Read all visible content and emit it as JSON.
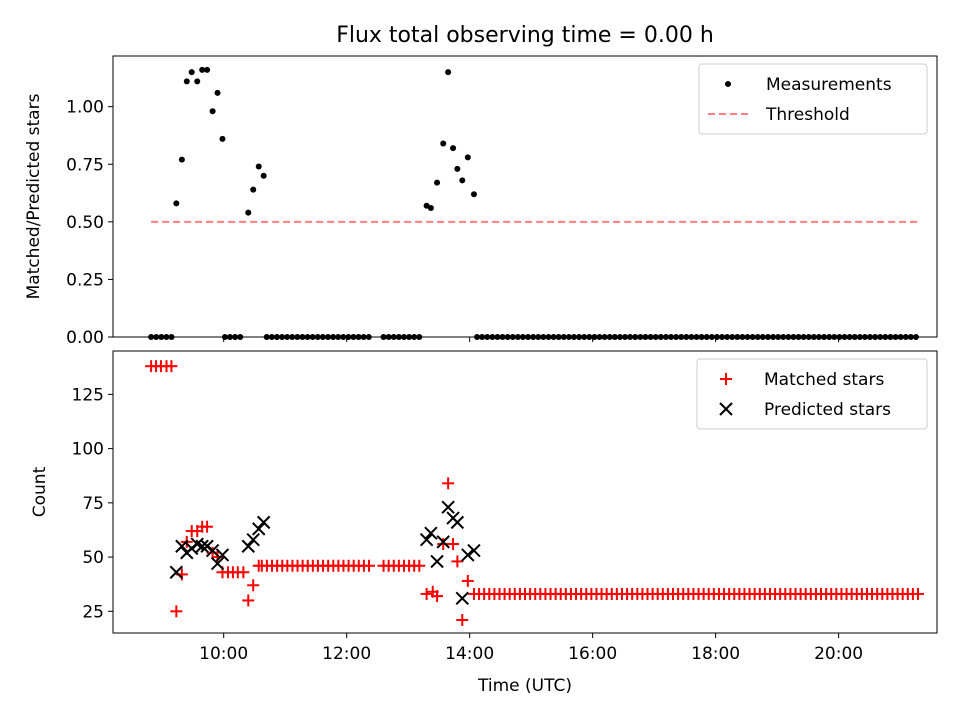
{
  "title": "Flux total observing time = 0.00 h",
  "chart_data": [
    {
      "type": "scatter",
      "panel": "top",
      "ylabel": "Matched/Predicted stars",
      "xlabel": "",
      "xlim_hours": [
        8.2,
        21.6
      ],
      "ylim": [
        0.0,
        1.22
      ],
      "yticks": [
        0.0,
        0.25,
        0.5,
        0.75,
        1.0
      ],
      "ytick_labels": [
        "0.00",
        "0.25",
        "0.50",
        "0.75",
        "1.00"
      ],
      "legend": {
        "position": "top-right",
        "entries": [
          "Measurements",
          "Threshold"
        ]
      },
      "series": [
        {
          "name": "Measurements",
          "marker": "dot",
          "color": "#000000",
          "points": [
            [
              9.23,
              0.58
            ],
            [
              9.32,
              0.77
            ],
            [
              9.4,
              1.11
            ],
            [
              9.48,
              1.15
            ],
            [
              9.57,
              1.11
            ],
            [
              9.65,
              1.16
            ],
            [
              9.73,
              1.16
            ],
            [
              9.82,
              0.98
            ],
            [
              9.9,
              1.06
            ],
            [
              9.98,
              0.86
            ],
            [
              10.4,
              0.54
            ],
            [
              10.48,
              0.64
            ],
            [
              10.57,
              0.74
            ],
            [
              10.65,
              0.7
            ],
            [
              13.3,
              0.57
            ],
            [
              13.37,
              0.56
            ],
            [
              13.47,
              0.67
            ],
            [
              13.57,
              0.84
            ],
            [
              13.65,
              1.15
            ],
            [
              13.73,
              0.82
            ],
            [
              13.8,
              0.73
            ],
            [
              13.88,
              0.68
            ],
            [
              13.97,
              0.78
            ],
            [
              14.07,
              0.62
            ]
          ],
          "zero_value_ranges_hours": [
            [
              8.82,
              9.2
            ],
            [
              10.02,
              10.35
            ],
            [
              10.7,
              12.4
            ],
            [
              12.6,
              13.25
            ],
            [
              14.12,
              21.3
            ]
          ],
          "zero_value": 0.0
        },
        {
          "name": "Threshold",
          "line": "dashed",
          "color": "#ff7f7f",
          "x_range_hours": [
            8.82,
            21.3
          ],
          "y": 0.5
        }
      ]
    },
    {
      "type": "scatter",
      "panel": "bottom",
      "ylabel": "Count",
      "xlabel": "Time (UTC)",
      "xlim_hours": [
        8.2,
        21.6
      ],
      "ylim": [
        15,
        145
      ],
      "yticks": [
        25,
        50,
        75,
        100,
        125
      ],
      "xticks_hours": [
        10,
        12,
        14,
        16,
        18,
        20
      ],
      "xtick_labels": [
        "10:00",
        "12:00",
        "14:00",
        "16:00",
        "18:00",
        "20:00"
      ],
      "legend": {
        "position": "top-right",
        "entries": [
          "Matched stars",
          "Predicted stars"
        ]
      },
      "series": [
        {
          "name": "Matched stars",
          "marker": "plus",
          "color": "#ff0000",
          "points": [
            [
              8.82,
              138
            ],
            [
              8.9,
              138
            ],
            [
              8.98,
              138
            ],
            [
              9.07,
              138
            ],
            [
              9.15,
              138
            ],
            [
              9.23,
              25
            ],
            [
              9.32,
              42
            ],
            [
              9.4,
              57
            ],
            [
              9.48,
              62
            ],
            [
              9.57,
              62
            ],
            [
              9.65,
              64
            ],
            [
              9.73,
              64
            ],
            [
              9.82,
              52
            ],
            [
              9.9,
              50
            ],
            [
              9.98,
              43
            ],
            [
              10.07,
              43
            ],
            [
              10.15,
              43
            ],
            [
              10.23,
              43
            ],
            [
              10.32,
              43
            ],
            [
              10.4,
              30
            ],
            [
              10.48,
              37
            ],
            [
              10.57,
              46
            ],
            [
              13.3,
              33
            ],
            [
              13.4,
              34
            ],
            [
              13.47,
              32
            ],
            [
              13.57,
              56
            ],
            [
              13.65,
              84
            ],
            [
              13.73,
              56
            ],
            [
              13.8,
              48
            ],
            [
              13.88,
              21
            ],
            [
              13.97,
              39
            ]
          ],
          "constant_ranges_hours": [
            {
              "range": [
                10.62,
                12.4
              ],
              "value": 46
            },
            {
              "range": [
                12.6,
                13.25
              ],
              "value": 46
            },
            {
              "range": [
                14.07,
                21.3
              ],
              "value": 33
            }
          ]
        },
        {
          "name": "Predicted stars",
          "marker": "x",
          "color": "#000000",
          "points": [
            [
              9.23,
              43
            ],
            [
              9.32,
              55
            ],
            [
              9.4,
              52
            ],
            [
              9.48,
              54
            ],
            [
              9.57,
              56
            ],
            [
              9.65,
              55
            ],
            [
              9.73,
              55
            ],
            [
              9.82,
              53
            ],
            [
              9.9,
              47
            ],
            [
              9.98,
              51
            ],
            [
              10.4,
              55
            ],
            [
              10.48,
              58
            ],
            [
              10.57,
              63
            ],
            [
              10.65,
              66
            ],
            [
              13.3,
              58
            ],
            [
              13.37,
              61
            ],
            [
              13.47,
              48
            ],
            [
              13.57,
              57
            ],
            [
              13.65,
              73
            ],
            [
              13.73,
              68
            ],
            [
              13.8,
              66
            ],
            [
              13.88,
              31
            ],
            [
              13.97,
              51
            ],
            [
              14.07,
              53
            ]
          ]
        }
      ]
    }
  ]
}
